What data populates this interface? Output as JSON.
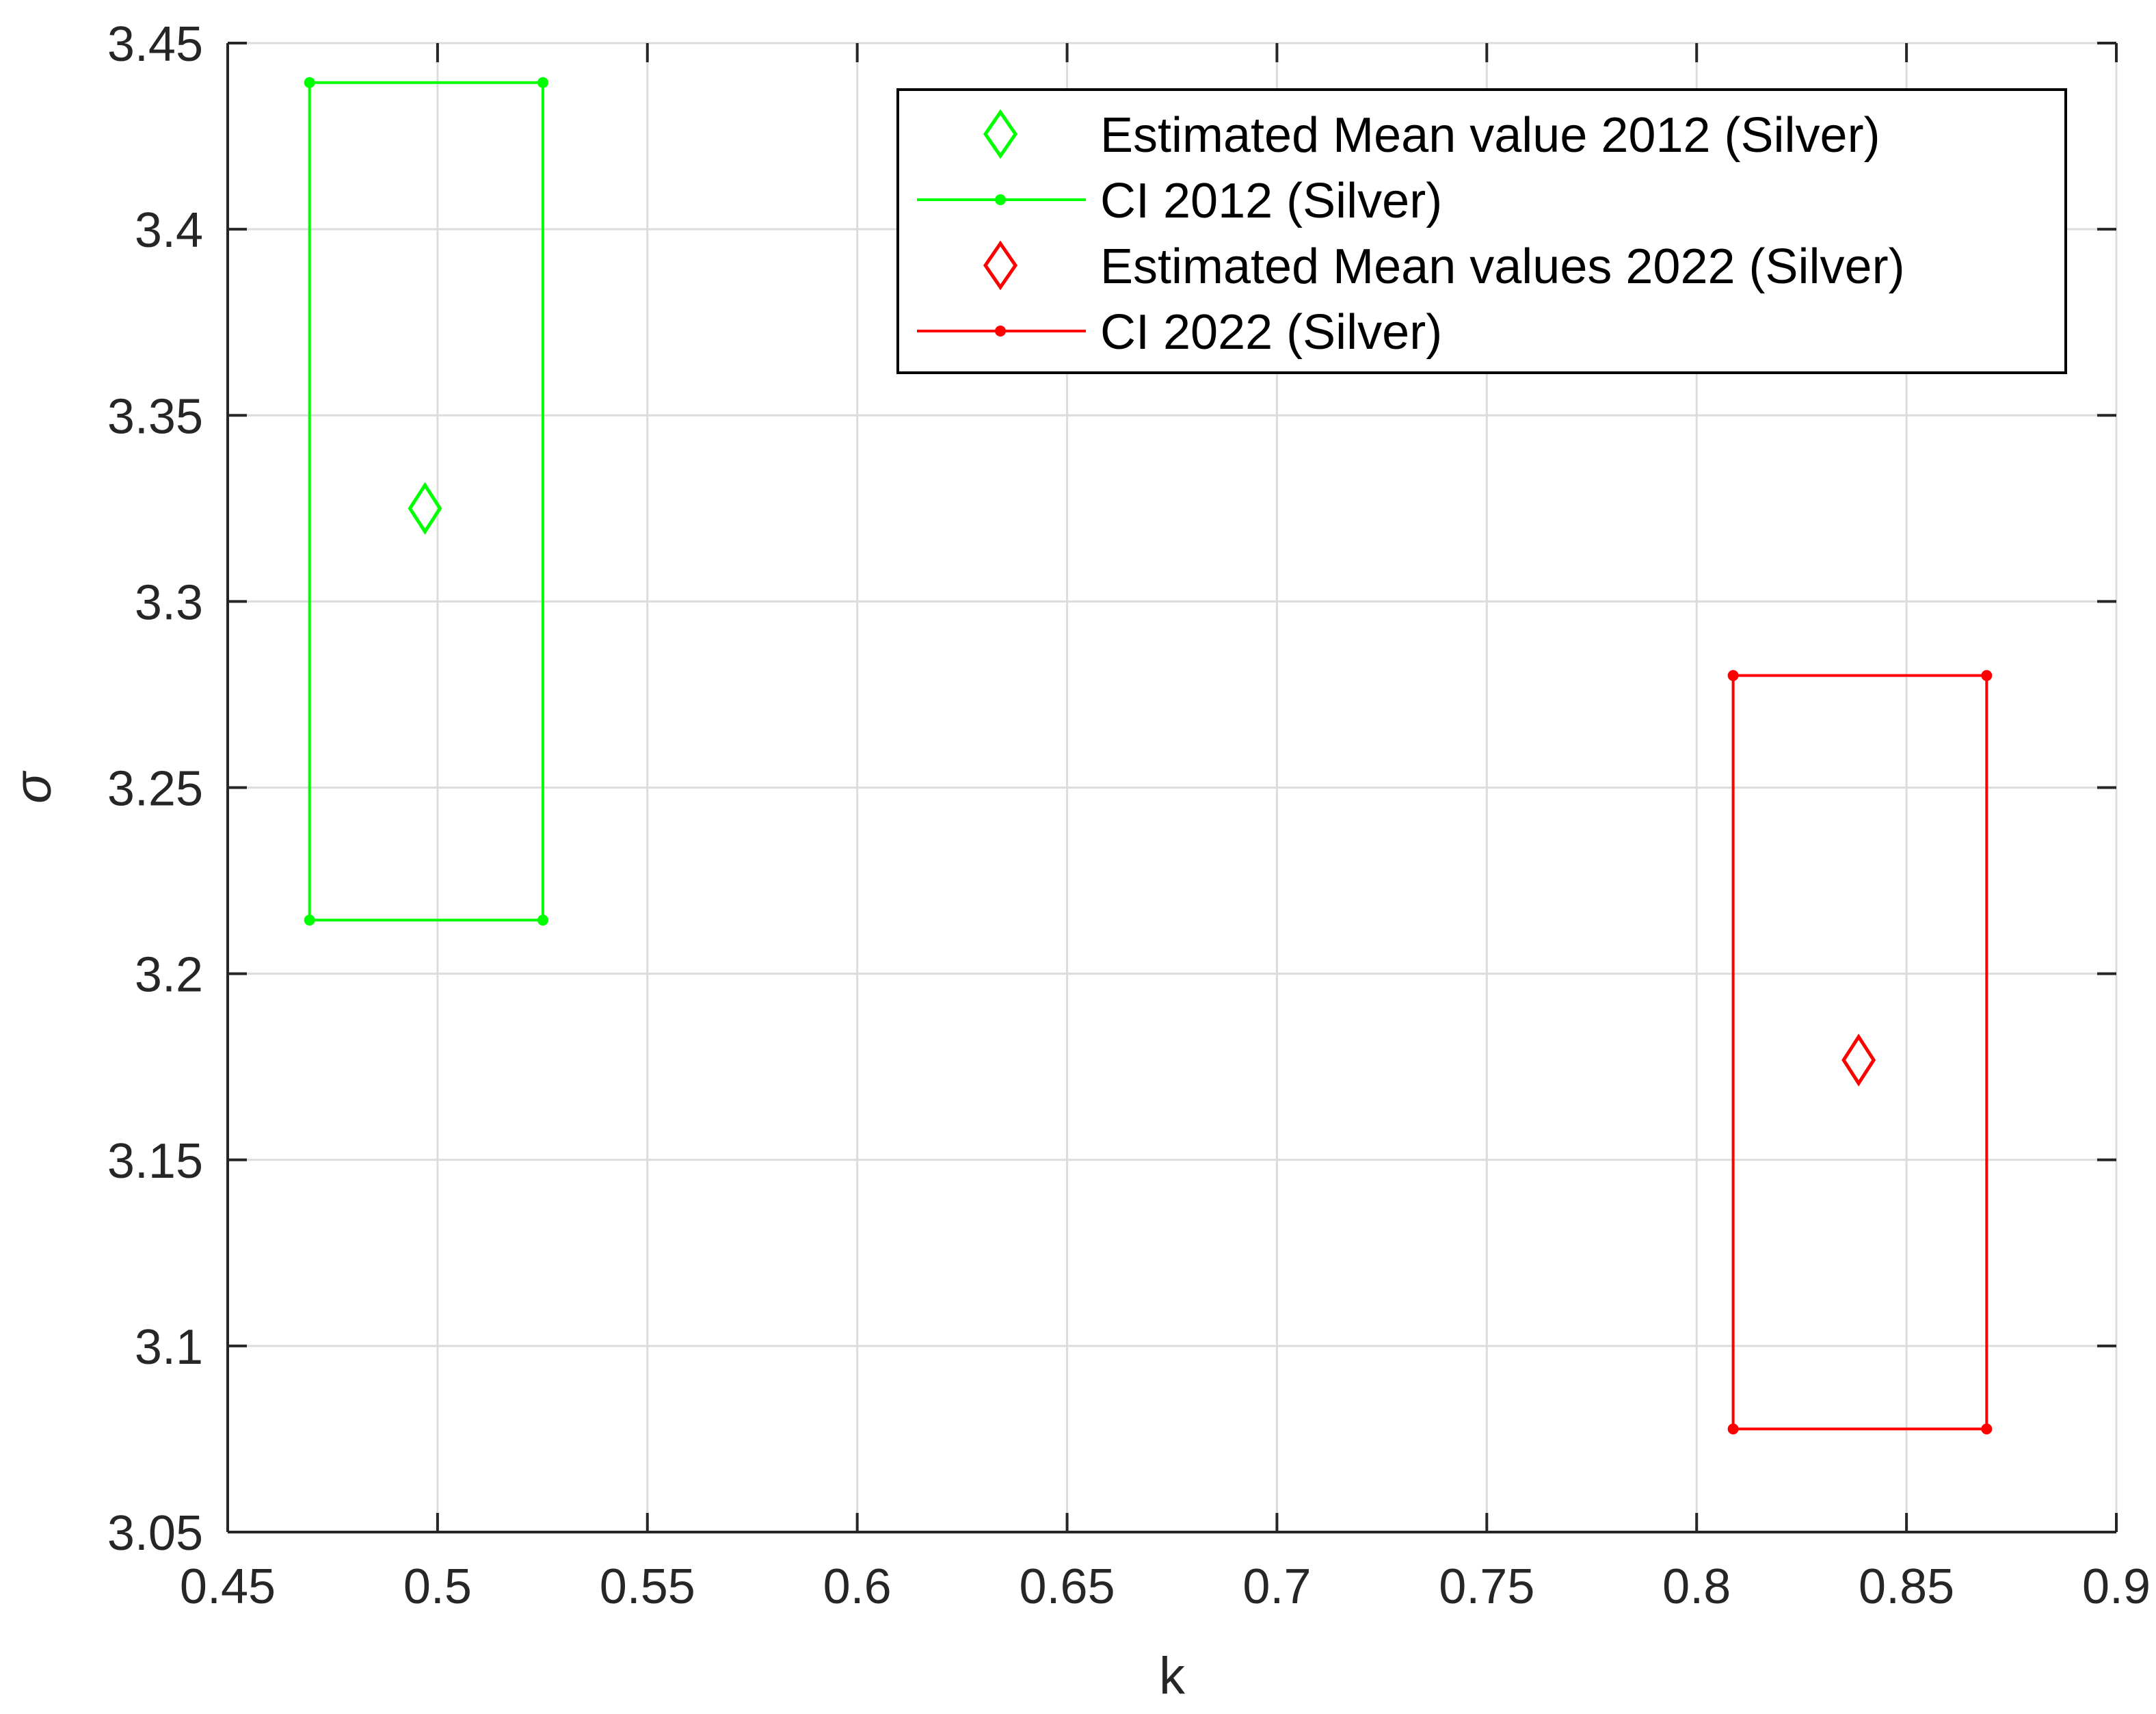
{
  "chart_data": {
    "type": "scatter",
    "xlabel": "k",
    "ylabel": "σ",
    "xlim": [
      0.45,
      0.9
    ],
    "ylim": [
      3.05,
      3.45
    ],
    "xticks": [
      0.45,
      0.5,
      0.55,
      0.6,
      0.65,
      0.7,
      0.75,
      0.8,
      0.85,
      0.9
    ],
    "yticks": [
      3.05,
      3.1,
      3.15,
      3.2,
      3.25,
      3.3,
      3.35,
      3.4,
      3.45
    ],
    "xtick_labels": [
      "0.45",
      "0.5",
      "0.55",
      "0.6",
      "0.65",
      "0.7",
      "0.75",
      "0.8",
      "0.85",
      "0.9"
    ],
    "ytick_labels": [
      "3.05",
      "3.1",
      "3.15",
      "3.2",
      "3.25",
      "3.3",
      "3.35",
      "3.4",
      "3.45"
    ],
    "grid": true,
    "legend_position": "top-right",
    "series": [
      {
        "name": "Estimated Mean value 2012 (Silver)",
        "kind": "marker",
        "marker": "diamond",
        "color": "#00ff00",
        "points": [
          [
            0.497,
            3.325
          ]
        ]
      },
      {
        "name": "CI 2012 (Silver)",
        "kind": "rectangle",
        "color": "#00ff00",
        "x": [
          0.4695,
          0.5251
        ],
        "y": [
          3.2144,
          3.4394
        ]
      },
      {
        "name": "Estimated Mean values 2022 (Silver)",
        "kind": "marker",
        "marker": "diamond",
        "color": "#ff0000",
        "points": [
          [
            0.8386,
            3.1768
          ]
        ]
      },
      {
        "name": "CI 2022 (Silver)",
        "kind": "rectangle",
        "color": "#ff0000",
        "x": [
          0.8087,
          0.8691
        ],
        "y": [
          3.0777,
          3.2801
        ]
      }
    ]
  }
}
